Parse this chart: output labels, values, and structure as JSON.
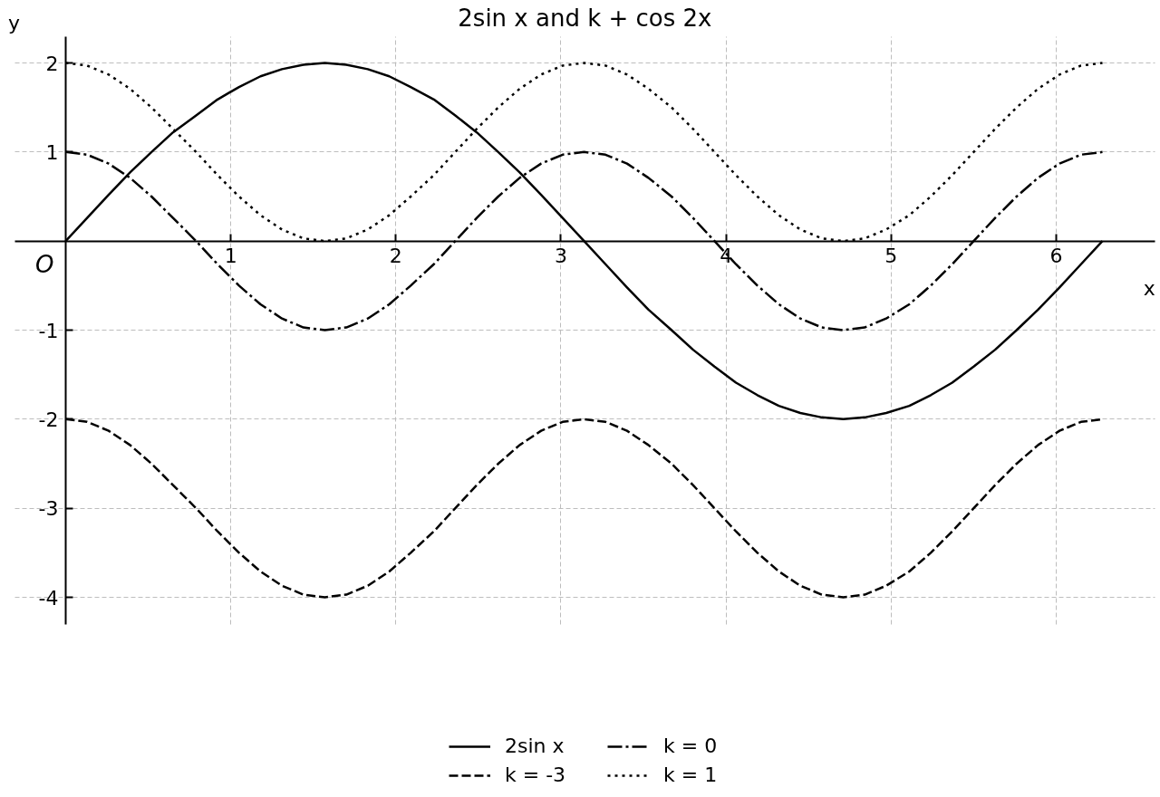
{
  "chart_data": {
    "type": "line",
    "title": "2sin x and k + cos 2x",
    "xlabel": "x",
    "ylabel": "y",
    "x": [
      0,
      0.13,
      0.26,
      0.39,
      0.52,
      0.65,
      0.79,
      0.92,
      1.05,
      1.18,
      1.31,
      1.44,
      1.57,
      1.7,
      1.83,
      1.96,
      2.09,
      2.23,
      2.36,
      2.49,
      2.62,
      2.75,
      2.88,
      3.01,
      3.14,
      3.27,
      3.4,
      3.53,
      3.67,
      3.8,
      3.93,
      4.06,
      4.19,
      4.32,
      4.45,
      4.58,
      4.71,
      4.84,
      4.97,
      5.11,
      5.24,
      5.37,
      5.5,
      5.63,
      5.76,
      5.89,
      6.02,
      6.15,
      6.28
    ],
    "series": [
      {
        "name": "2sin x",
        "color": "#000000",
        "line_style": "solid",
        "values": [
          0,
          0.26,
          0.52,
          0.77,
          1,
          1.22,
          1.41,
          1.59,
          1.73,
          1.85,
          1.93,
          1.98,
          2,
          1.98,
          1.93,
          1.85,
          1.73,
          1.59,
          1.41,
          1.22,
          1,
          0.77,
          0.52,
          0.26,
          0,
          -0.26,
          -0.52,
          -0.77,
          -1,
          -1.22,
          -1.41,
          -1.59,
          -1.73,
          -1.85,
          -1.93,
          -1.98,
          -2,
          -1.98,
          -1.93,
          -1.85,
          -1.73,
          -1.59,
          -1.41,
          -1.22,
          -1,
          -0.77,
          -0.52,
          -0.26,
          0
        ]
      },
      {
        "name": "k = -3",
        "color": "#000000",
        "line_style": "dashed",
        "values": [
          -2,
          -2.03,
          -2.13,
          -2.29,
          -2.5,
          -2.74,
          -3,
          -3.26,
          -3.5,
          -3.71,
          -3.87,
          -3.97,
          -4,
          -3.97,
          -3.87,
          -3.71,
          -3.5,
          -3.26,
          -3,
          -2.74,
          -2.5,
          -2.29,
          -2.13,
          -2.03,
          -2,
          -2.03,
          -2.13,
          -2.29,
          -2.5,
          -2.74,
          -3,
          -3.26,
          -3.5,
          -3.71,
          -3.87,
          -3.97,
          -4,
          -3.97,
          -3.87,
          -3.71,
          -3.5,
          -3.26,
          -3,
          -2.74,
          -2.5,
          -2.29,
          -2.13,
          -2.03,
          -2
        ]
      },
      {
        "name": "k = 0",
        "color": "#000000",
        "line_style": "dashdot",
        "values": [
          1,
          0.97,
          0.87,
          0.71,
          0.5,
          0.26,
          0,
          -0.26,
          -0.5,
          -0.71,
          -0.87,
          -0.97,
          -1,
          -0.97,
          -0.87,
          -0.71,
          -0.5,
          -0.26,
          0,
          0.26,
          0.5,
          0.71,
          0.87,
          0.97,
          1,
          0.97,
          0.87,
          0.71,
          0.5,
          0.26,
          0,
          -0.26,
          -0.5,
          -0.71,
          -0.87,
          -0.97,
          -1,
          -0.97,
          -0.87,
          -0.71,
          -0.5,
          -0.26,
          0,
          0.26,
          0.5,
          0.71,
          0.87,
          0.97,
          1
        ]
      },
      {
        "name": "k = 1",
        "color": "#000000",
        "line_style": "dotted",
        "values": [
          2,
          1.97,
          1.87,
          1.71,
          1.5,
          1.26,
          1,
          0.74,
          0.5,
          0.29,
          0.13,
          0.03,
          0,
          0.03,
          0.13,
          0.29,
          0.5,
          0.74,
          1,
          1.26,
          1.5,
          1.71,
          1.87,
          1.97,
          2,
          1.97,
          1.87,
          1.71,
          1.5,
          1.26,
          1,
          0.74,
          0.5,
          0.29,
          0.13,
          0.03,
          0,
          0.03,
          0.13,
          0.29,
          0.5,
          0.74,
          1,
          1.26,
          1.5,
          1.71,
          1.87,
          1.97,
          2
        ]
      }
    ],
    "xlim": [
      -0.31,
      6.6
    ],
    "ylim": [
      -4.3,
      2.3
    ],
    "xticks": [
      1,
      2,
      3,
      4,
      5,
      6
    ],
    "yticks": [
      -4,
      -3,
      -2,
      -1,
      1,
      2
    ],
    "grid": true,
    "legend": "bottom",
    "annotations": [
      {
        "text": "O",
        "x": 0,
        "y": 0
      }
    ]
  }
}
